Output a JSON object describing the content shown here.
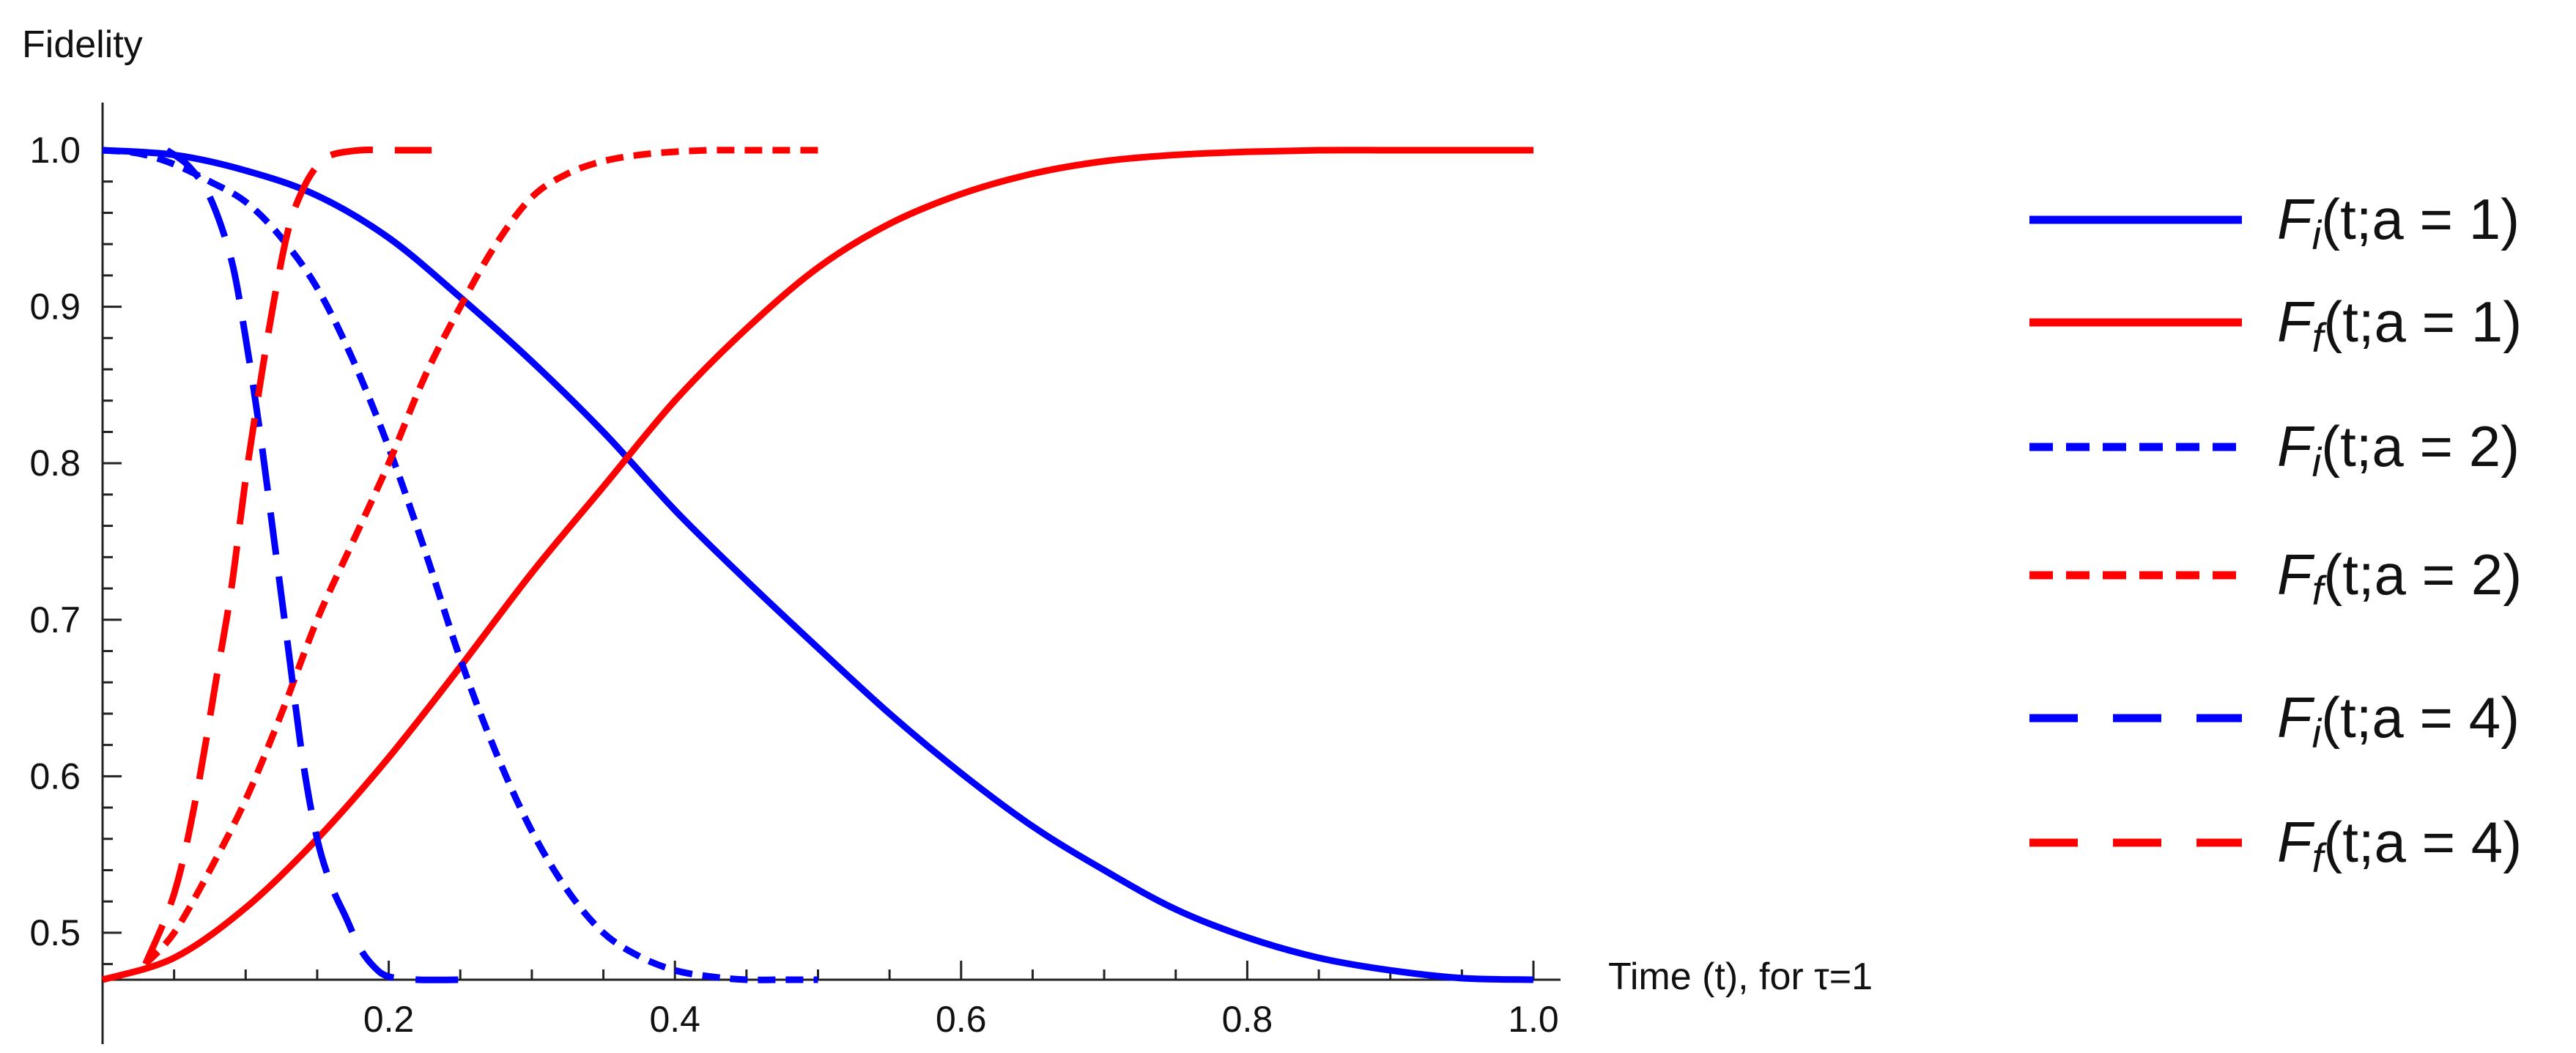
{
  "chart_data": {
    "type": "line",
    "ylabel": "Fidelity",
    "xlabel": "Time (t), for τ=1",
    "xlim": [
      0,
      1.0
    ],
    "ylim": [
      0.47,
      1.0
    ],
    "xticks": [
      "0.2",
      "0.4",
      "0.6",
      "0.8",
      "1.0"
    ],
    "xtick_values": [
      0.2,
      0.4,
      0.6,
      0.8,
      1.0
    ],
    "yticks": [
      "0.5",
      "0.6",
      "0.7",
      "0.8",
      "0.9",
      "1.0"
    ],
    "ytick_values": [
      0.5,
      0.6,
      0.7,
      0.8,
      0.9,
      1.0
    ],
    "grid": false,
    "legend_position": "right",
    "series": [
      {
        "name": "F_i(t;a = 1)",
        "base": "F",
        "sub": "i",
        "args": "(t;a = 1)",
        "color": "#0000ff",
        "dash": "solid",
        "x": [
          0,
          0.05,
          0.1,
          0.15,
          0.2,
          0.25,
          0.3,
          0.35,
          0.4,
          0.45,
          0.5,
          0.55,
          0.6,
          0.65,
          0.7,
          0.75,
          0.8,
          0.85,
          0.9,
          0.95,
          1.0
        ],
        "y": [
          1.0,
          0.997,
          0.987,
          0.971,
          0.944,
          0.906,
          0.865,
          0.82,
          0.77,
          0.725,
          0.682,
          0.64,
          0.602,
          0.568,
          0.54,
          0.515,
          0.497,
          0.484,
          0.476,
          0.471,
          0.47
        ]
      },
      {
        "name": "F_f(t;a = 1)",
        "base": "F",
        "sub": "f",
        "args": "(t;a = 1)",
        "color": "#ff0000",
        "dash": "solid",
        "x": [
          0,
          0.05,
          0.1,
          0.15,
          0.2,
          0.25,
          0.3,
          0.35,
          0.4,
          0.45,
          0.5,
          0.55,
          0.6,
          0.65,
          0.7,
          0.75,
          0.8,
          0.85,
          0.9,
          0.95,
          1.0
        ],
        "y": [
          0.47,
          0.484,
          0.516,
          0.56,
          0.612,
          0.67,
          0.73,
          0.785,
          0.84,
          0.886,
          0.925,
          0.953,
          0.972,
          0.985,
          0.993,
          0.997,
          0.999,
          1.0,
          1.0,
          1.0,
          1.0
        ]
      },
      {
        "name": "F_i(t;a = 2)",
        "base": "F",
        "sub": "i",
        "args": "(t;a = 2)",
        "color": "#0000ff",
        "dash": "short",
        "x": [
          0,
          0.025,
          0.05,
          0.075,
          0.1,
          0.125,
          0.15,
          0.175,
          0.2,
          0.225,
          0.25,
          0.275,
          0.3,
          0.325,
          0.35,
          0.375,
          0.4,
          0.425,
          0.45,
          0.475,
          0.5
        ],
        "y": [
          1.0,
          0.998,
          0.991,
          0.98,
          0.967,
          0.944,
          0.912,
          0.866,
          0.81,
          0.745,
          0.675,
          0.615,
          0.565,
          0.527,
          0.5,
          0.485,
          0.476,
          0.472,
          0.47,
          0.47,
          0.47
        ]
      },
      {
        "name": "F_f(t;a = 2)",
        "base": "F",
        "sub": "f",
        "args": "(t;a = 2)",
        "color": "#ff0000",
        "dash": "short",
        "x": [
          0.03,
          0.05,
          0.075,
          0.1,
          0.125,
          0.15,
          0.175,
          0.2,
          0.225,
          0.25,
          0.275,
          0.3,
          0.325,
          0.35,
          0.375,
          0.4,
          0.425,
          0.45,
          0.475,
          0.5
        ],
        "y": [
          0.48,
          0.5,
          0.54,
          0.585,
          0.64,
          0.7,
          0.75,
          0.8,
          0.855,
          0.9,
          0.94,
          0.97,
          0.985,
          0.993,
          0.997,
          0.999,
          1.0,
          1.0,
          1.0,
          1.0
        ]
      },
      {
        "name": "F_i(t;a = 4)",
        "base": "F",
        "sub": "i",
        "args": "(t;a = 4)",
        "color": "#0000ff",
        "dash": "long",
        "x": [
          0.045,
          0.06,
          0.075,
          0.09,
          0.1,
          0.11,
          0.12,
          0.13,
          0.14,
          0.15,
          0.16,
          0.17,
          0.18,
          0.19,
          0.2,
          0.22,
          0.25
        ],
        "y": [
          1.0,
          0.99,
          0.97,
          0.93,
          0.88,
          0.82,
          0.75,
          0.68,
          0.61,
          0.56,
          0.53,
          0.51,
          0.49,
          0.478,
          0.472,
          0.47,
          0.47
        ]
      },
      {
        "name": "F_f(t;a = 4)",
        "base": "F",
        "sub": "f",
        "args": "(t;a = 4)",
        "color": "#ff0000",
        "dash": "long",
        "x": [
          0.03,
          0.05,
          0.065,
          0.08,
          0.09,
          0.1,
          0.11,
          0.12,
          0.13,
          0.14,
          0.15,
          0.16,
          0.18,
          0.2,
          0.23
        ],
        "y": [
          0.48,
          0.525,
          0.585,
          0.665,
          0.72,
          0.79,
          0.85,
          0.905,
          0.95,
          0.975,
          0.99,
          0.997,
          1.0,
          1.0,
          1.0
        ]
      }
    ]
  }
}
